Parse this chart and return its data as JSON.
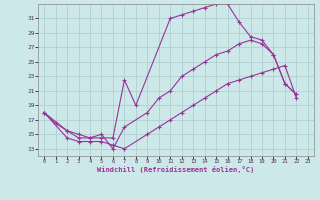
{
  "xlabel": "Windchill (Refroidissement éolien,°C)",
  "bg_color": "#cce8e8",
  "grid_color": "#aacccc",
  "line_color": "#993399",
  "xlim": [
    -0.5,
    23.5
  ],
  "ylim": [
    12,
    33
  ],
  "xticks": [
    0,
    1,
    2,
    3,
    4,
    5,
    6,
    7,
    8,
    9,
    10,
    11,
    12,
    13,
    14,
    15,
    16,
    17,
    18,
    19,
    20,
    21,
    22,
    23
  ],
  "yticks": [
    13,
    15,
    17,
    19,
    21,
    23,
    25,
    27,
    29,
    31
  ],
  "line1_x": [
    0,
    1,
    2,
    3,
    4,
    5,
    6,
    7,
    8,
    11,
    12,
    13,
    14,
    15,
    16,
    17,
    18,
    19,
    20,
    21,
    22
  ],
  "line1_y": [
    18,
    16.5,
    15.5,
    14.5,
    14.5,
    14.5,
    14.5,
    22.5,
    19,
    31,
    31.5,
    32,
    32.5,
    33,
    33,
    30.5,
    28.5,
    28,
    26,
    22,
    20.5
  ],
  "line2_x": [
    0,
    2,
    3,
    4,
    5,
    6,
    7,
    9,
    10,
    11,
    12,
    13,
    14,
    15,
    16,
    17,
    18,
    19,
    20,
    21,
    22
  ],
  "line2_y": [
    18,
    15.5,
    15,
    14.5,
    15,
    13,
    16,
    18,
    20,
    21,
    23,
    24,
    25,
    26,
    26.5,
    27.5,
    28,
    27.5,
    26,
    22,
    20.5
  ],
  "line3_x": [
    0,
    2,
    3,
    4,
    5,
    6,
    7,
    9,
    10,
    11,
    12,
    13,
    14,
    15,
    16,
    17,
    18,
    19,
    20,
    21,
    22
  ],
  "line3_y": [
    18,
    14.5,
    14,
    14,
    14,
    13.5,
    13,
    15,
    16,
    17,
    18,
    19,
    20,
    21,
    22,
    22.5,
    23,
    23.5,
    24,
    24.5,
    20
  ]
}
